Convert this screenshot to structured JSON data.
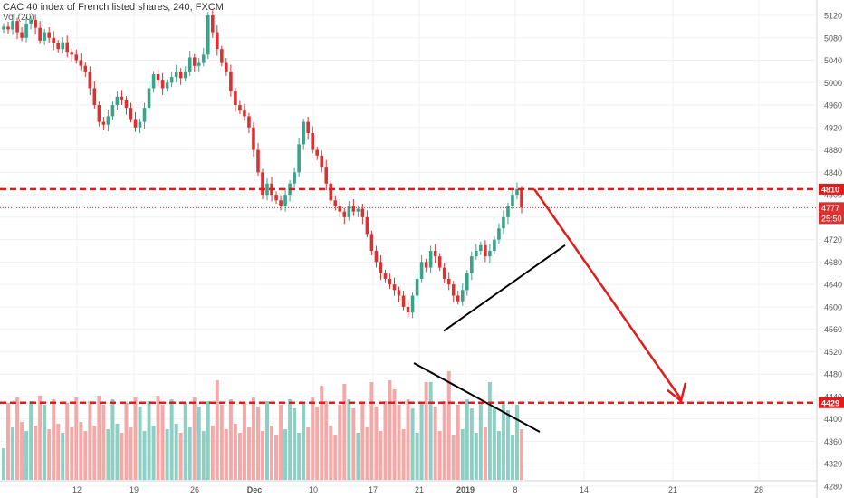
{
  "header": {
    "symbol_line": "CAC 40 index of French listed shares, 240, FXCM",
    "volume_label": "Vol (20)"
  },
  "chart_data": {
    "type": "candlestick",
    "title": "CAC 40 index of French listed shares, 240, FXCM",
    "y_ticks": [
      5120,
      5080,
      5040,
      5000,
      4960,
      4920,
      4880,
      4840,
      4800,
      4760,
      4720,
      4680,
      4640,
      4600,
      4560,
      4520,
      4480,
      4440,
      4400,
      4360,
      4320,
      4280
    ],
    "ylim": [
      4248,
      5136
    ],
    "x_ticks": [
      "12",
      "19",
      "26",
      "Dec",
      "10",
      "17",
      "21",
      "2019",
      "8",
      "14",
      "21",
      "28"
    ],
    "x_tick_bold": [
      "Dec",
      "2019"
    ],
    "last_price": {
      "label": "4777",
      "value": 4777,
      "countdown": "25:50"
    },
    "levels": [
      {
        "label": "4810",
        "value": 4810,
        "color": "#e31b1b"
      },
      {
        "label": "4429",
        "value": 4429,
        "color": "#e31b1b"
      }
    ],
    "colors": {
      "up": "#3aa38a",
      "down": "#d83232",
      "vol_up": "#8ecfc4",
      "vol_down": "#f4a9a9",
      "axis_price": "#e31b1b"
    },
    "candle_closes": [
      5100,
      5095,
      5110,
      5090,
      5080,
      5105,
      5112,
      5098,
      5075,
      5090,
      5080,
      5070,
      5060,
      5072,
      5055,
      5050,
      5040,
      5030,
      5020,
      4990,
      4960,
      4930,
      4925,
      4940,
      4960,
      4975,
      4970,
      4955,
      4935,
      4920,
      4930,
      4955,
      4990,
      5015,
      5005,
      4990,
      5000,
      5010,
      5020,
      5008,
      5020,
      5045,
      5030,
      5035,
      5050,
      5120,
      5090,
      5060,
      5035,
      5020,
      4985,
      4960,
      4950,
      4940,
      4920,
      4880,
      4840,
      4800,
      4820,
      4800,
      4790,
      4780,
      4800,
      4820,
      4840,
      4890,
      4930,
      4910,
      4880,
      4870,
      4850,
      4820,
      4790,
      4780,
      4770,
      4760,
      4780,
      4770,
      4775,
      4760,
      4730,
      4700,
      4680,
      4660,
      4650,
      4640,
      4630,
      4620,
      4600,
      4590,
      4620,
      4650,
      4680,
      4670,
      4700,
      4690,
      4670,
      4650,
      4640,
      4620,
      4610,
      4630,
      4660,
      4690,
      4700,
      4710,
      4690,
      4700,
      4720,
      4740,
      4760,
      4780,
      4800,
      4810,
      4777
    ],
    "annotations": [
      {
        "type": "support-trendline",
        "from": [
          "Dec 27",
          4557
        ],
        "to": [
          "Jan 14",
          4710
        ]
      },
      {
        "type": "volume-trendline",
        "from": [
          "Dec 21",
          4470
        ],
        "to": [
          "Jan 14",
          4335
        ]
      },
      {
        "type": "projection-arrow",
        "from": [
          "Jan 9",
          4810
        ],
        "to": [
          "Jan 23",
          4429
        ]
      }
    ]
  }
}
